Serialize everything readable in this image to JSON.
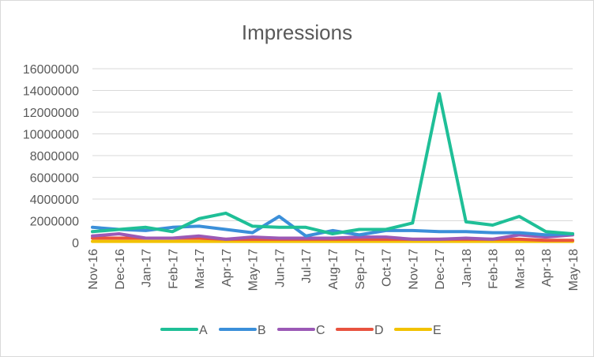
{
  "chart_data": {
    "type": "line",
    "title": "Impressions",
    "xlabel": "",
    "ylabel": "",
    "categories": [
      "Nov-16",
      "Dec-16",
      "Jan-17",
      "Feb-17",
      "Mar-17",
      "Apr-17",
      "May-17",
      "Jun-17",
      "Jul-17",
      "Aug-17",
      "Sep-17",
      "Oct-17",
      "Nov-17",
      "Dec-17",
      "Jan-18",
      "Feb-18",
      "Mar-18",
      "Apr-18",
      "May-18"
    ],
    "yticks": [
      "0",
      "2000000",
      "4000000",
      "6000000",
      "8000000",
      "10000000",
      "12000000",
      "14000000",
      "16000000"
    ],
    "ylim": [
      0,
      16000000
    ],
    "grid": true,
    "legend_position": "bottom",
    "series": [
      {
        "name": "A",
        "color": "#1fbf97",
        "values": [
          1000000,
          1200000,
          1400000,
          1000000,
          2200000,
          2700000,
          1500000,
          1400000,
          1400000,
          800000,
          1200000,
          1200000,
          1800000,
          13700000,
          1900000,
          1600000,
          2400000,
          1000000,
          800000
        ]
      },
      {
        "name": "B",
        "color": "#3b8fd9",
        "values": [
          1400000,
          1200000,
          1100000,
          1400000,
          1500000,
          1200000,
          900000,
          2400000,
          600000,
          1100000,
          700000,
          1100000,
          1100000,
          1000000,
          1000000,
          900000,
          900000,
          700000,
          800000
        ]
      },
      {
        "name": "C",
        "color": "#9b59b6",
        "values": [
          600000,
          800000,
          400000,
          400000,
          600000,
          300000,
          500000,
          400000,
          400000,
          400000,
          500000,
          500000,
          300000,
          300000,
          400000,
          300000,
          700000,
          500000,
          700000
        ]
      },
      {
        "name": "D",
        "color": "#e8533f",
        "values": [
          400000,
          400000,
          400000,
          400000,
          400000,
          300000,
          300000,
          300000,
          300000,
          300000,
          300000,
          300000,
          300000,
          300000,
          300000,
          300000,
          300000,
          200000,
          200000
        ]
      },
      {
        "name": "E",
        "color": "#f2c200",
        "values": [
          100000,
          100000,
          100000,
          100000,
          100000,
          100000,
          100000,
          100000,
          100000,
          100000,
          100000,
          100000,
          100000,
          100000,
          100000,
          100000,
          100000,
          100000,
          100000
        ]
      }
    ]
  }
}
